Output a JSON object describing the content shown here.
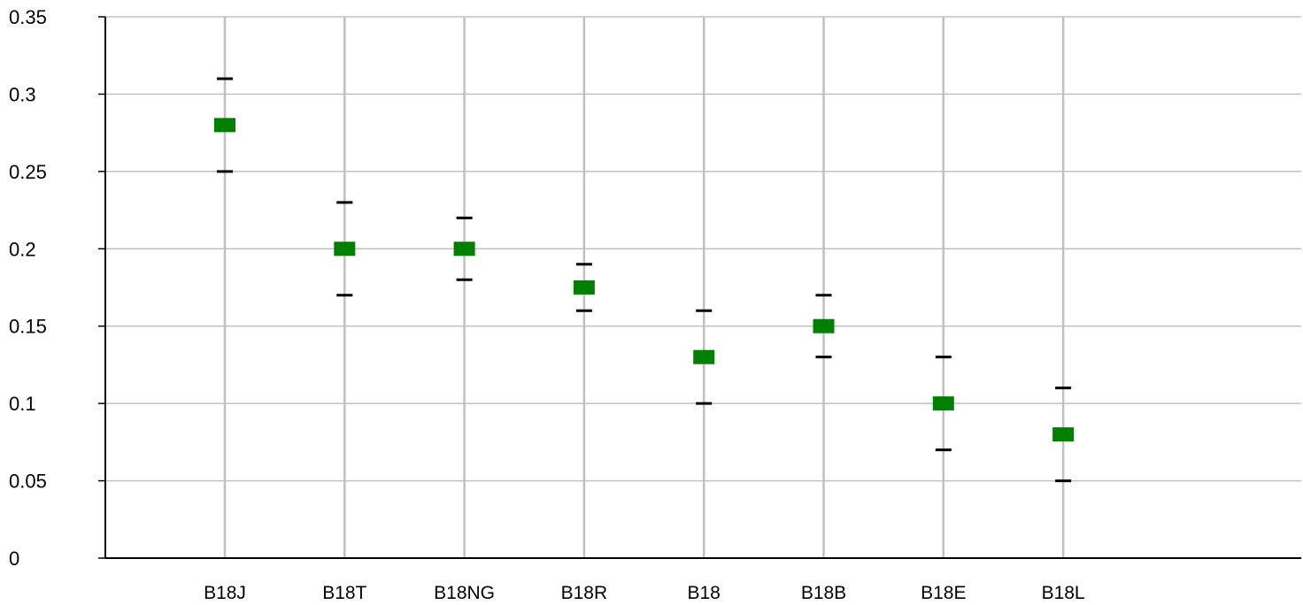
{
  "chart_data": {
    "type": "scatter",
    "title": "",
    "xlabel": "",
    "ylabel": "",
    "ylim": [
      0,
      0.35
    ],
    "yticks": [
      {
        "value": 0,
        "label": "0"
      },
      {
        "value": 0.05,
        "label": "0.05"
      },
      {
        "value": 0.1,
        "label": "0.1"
      },
      {
        "value": 0.15,
        "label": "0.15"
      },
      {
        "value": 0.2,
        "label": "0.2"
      },
      {
        "value": 0.25,
        "label": "0.25"
      },
      {
        "value": 0.3,
        "label": "0.3"
      },
      {
        "value": 0.35,
        "label": "0.35"
      }
    ],
    "grid": true,
    "legend": "none",
    "categories": [
      "B18J",
      "B18T",
      "B18NG",
      "B18R",
      "B18",
      "B18B",
      "B18E",
      "B18L"
    ],
    "series": [
      {
        "values": [
          0.28,
          0.2,
          0.2,
          0.175,
          0.13,
          0.15,
          0.1,
          0.08
        ],
        "upper": [
          0.31,
          0.23,
          0.22,
          0.19,
          0.16,
          0.17,
          0.13,
          0.11
        ],
        "lower": [
          0.25,
          0.17,
          0.18,
          0.16,
          0.1,
          0.13,
          0.07,
          0.05
        ]
      }
    ],
    "colors": {
      "marker": "#008000",
      "error_tick": "#000000",
      "grid": "#c0c0c0",
      "axis": "#000000"
    }
  }
}
